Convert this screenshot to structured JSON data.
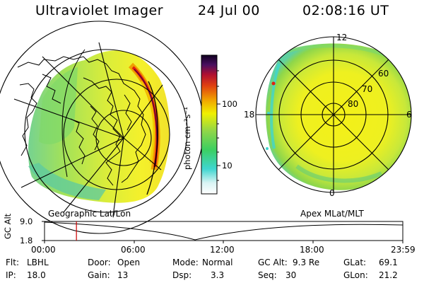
{
  "header": {
    "title": "Ultraviolet Imager",
    "date": "24 Jul 00",
    "time": "02:08:16 UT"
  },
  "colorbar": {
    "unit_label": "photon cm⁻²s⁻¹",
    "ticks": [
      "100",
      "10"
    ]
  },
  "left_panel": {
    "label": "Geographic Lat/Lon"
  },
  "right_panel": {
    "label": "Apex MLat/MLT",
    "clock_labels": {
      "top": "12",
      "left": "18",
      "right": "6",
      "bottom": "0"
    },
    "lat_labels": [
      "60",
      "70",
      "80"
    ]
  },
  "timeline": {
    "ylabel": "GC Alt",
    "y_top": "9.0",
    "y_bottom": "1.8",
    "x_ticks": [
      "00:00",
      "06:00",
      "12:00",
      "18:00",
      "23:59"
    ],
    "cursor_time_hours": 2.138
  },
  "info": {
    "flt_label": "Flt:",
    "flt_value": "LBHL",
    "door_label": "Door:",
    "door_value": "Open",
    "mode_label": "Mode:",
    "mode_value": "Normal",
    "gcalt_label": "GC Alt:",
    "gcalt_value": "9.3 Re",
    "glat_label": "GLat:",
    "glat_value": "69.1",
    "ip_label": "IP:",
    "ip_value": "18.0",
    "gain_label": "Gain:",
    "gain_value": "13",
    "dsp_label": "Dsp:",
    "dsp_value": "3.3",
    "seq_label": "Seq:",
    "seq_value": "30",
    "glon_label": "GLon:",
    "glon_value": "21.2"
  },
  "colors": {
    "dark": "#1a0030",
    "red": "#d01010",
    "orange": "#f0a000",
    "yellow": "#f0f000",
    "green": "#8ed64a",
    "cyan": "#3fd6d0",
    "cursor": "#cc0000"
  }
}
